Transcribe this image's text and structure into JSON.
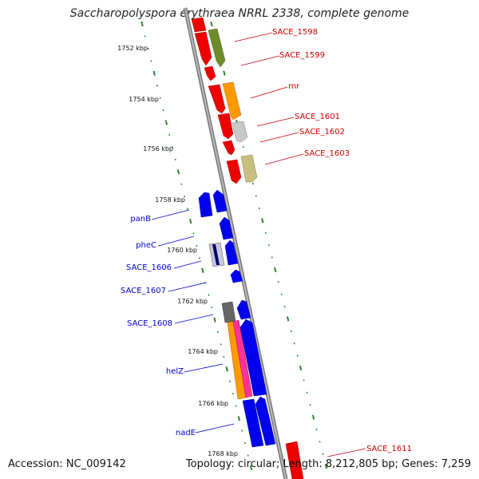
{
  "title": "Saccharopolyspora erythraea NRRL 2338, complete genome",
  "footer": {
    "accession": "Accession: NC_009142",
    "topology": "Topology: circular; Length: 8,212,805 bp; Genes: 7,259"
  },
  "colors": {
    "backbone": "#888888",
    "tick": "#2a8a2a",
    "forward_label": "#cc0000",
    "reverse_label": "#0000cc",
    "red_gene": "#ee0000",
    "blue_gene": "#0000ee",
    "olive_green": "#6e8b2a",
    "orange": "#ff9900",
    "light_gray": "#c8c8c8",
    "khaki": "#c8c080",
    "pink": "#ff3399",
    "dark_gray": "#666666",
    "navy": "#000066"
  },
  "ruler": {
    "unit": "kbp",
    "labels": [
      "1752 kbp",
      "1754 kbp",
      "1756 kbp",
      "1758 kbp",
      "1760 kbp",
      "1762 kbp",
      "1764 kbp",
      "1766 kbp",
      "1768 kbp"
    ]
  },
  "forward_genes": [
    {
      "label": "SACE_1598"
    },
    {
      "label": "SACE_1599"
    },
    {
      "label": "rnr"
    },
    {
      "label": "SACE_1601"
    },
    {
      "label": "SACE_1602"
    },
    {
      "label": "SACE_1603"
    },
    {
      "label": "SACE_1611"
    }
  ],
  "reverse_genes": [
    {
      "label": "panB"
    },
    {
      "label": "pheC"
    },
    {
      "label": "SACE_1606"
    },
    {
      "label": "SACE_1607"
    },
    {
      "label": "SACE_1608"
    },
    {
      "label": "helZ"
    },
    {
      "label": "nadE"
    }
  ]
}
